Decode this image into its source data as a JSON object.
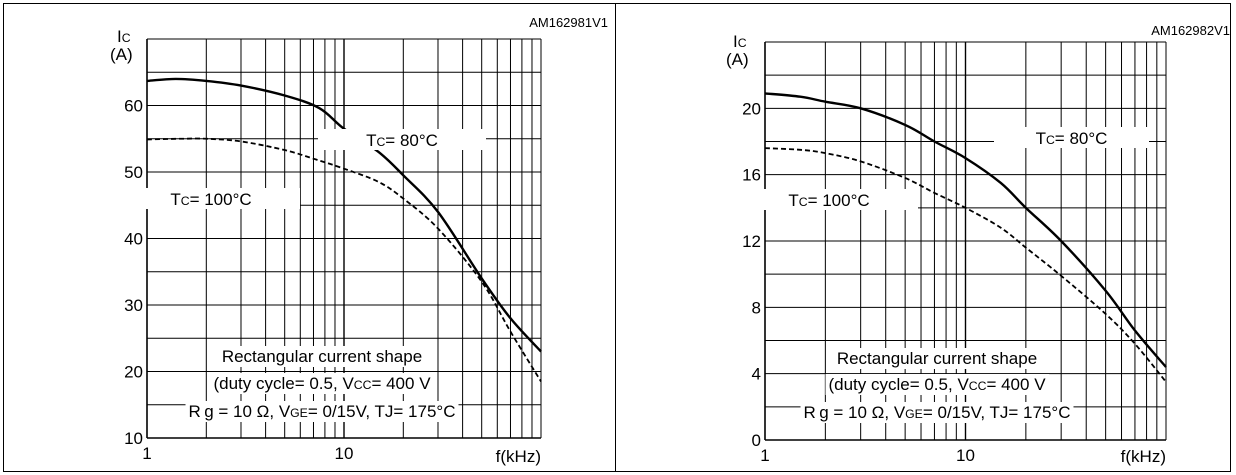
{
  "chart_data": [
    {
      "type": "line",
      "figure_id": "AM162981V1",
      "ylabel": "IC",
      "yunit": "(A)",
      "xlabel": "f(kHz)",
      "xscale": "log",
      "xlim": [
        1,
        100
      ],
      "ylim": [
        10,
        70
      ],
      "yticks": [
        10,
        20,
        30,
        40,
        50,
        60
      ],
      "xticks": [
        1,
        10
      ],
      "grid": true,
      "series": [
        {
          "name": "TC= 80°C",
          "style": "solid",
          "x": [
            1,
            1.4,
            2,
            3,
            5,
            7.5,
            10,
            15,
            20,
            30,
            50,
            70,
            100
          ],
          "y": [
            63.7,
            64,
            63.7,
            63,
            61.5,
            59.6,
            56.5,
            53,
            49.5,
            44,
            34,
            28,
            23
          ]
        },
        {
          "name": "TC= 100°C",
          "style": "dashed",
          "x": [
            1,
            1.5,
            2,
            3,
            5,
            7,
            10,
            15,
            20,
            30,
            50,
            70,
            100
          ],
          "y": [
            54.9,
            55,
            55,
            54.6,
            53.3,
            52,
            50.5,
            48.5,
            46,
            41.5,
            33.5,
            26,
            18.5
          ]
        }
      ],
      "series_labels": [
        "TC= 80°C",
        "TC= 100°C"
      ],
      "annotation": {
        "line1": "Rectangular current shape",
        "line2": "(duty cycle= 0.5, VCC= 400 V",
        "line3": "Rg = 10 Ω, VGE= 0/15V, TJ= 175°C"
      }
    },
    {
      "type": "line",
      "figure_id": "AM162982V1",
      "ylabel": "IC",
      "yunit": "(A)",
      "xlabel": "f(kHz)",
      "xscale": "log",
      "xlim": [
        1,
        100
      ],
      "ylim": [
        0,
        24
      ],
      "yticks": [
        0,
        4,
        8,
        12,
        16,
        20
      ],
      "xticks": [
        1,
        10
      ],
      "grid": true,
      "series": [
        {
          "name": "TC= 80°C",
          "style": "solid",
          "x": [
            1,
            1.5,
            2,
            3,
            5,
            7,
            10,
            15,
            20,
            30,
            50,
            70,
            100
          ],
          "y": [
            20.9,
            20.7,
            20.4,
            20,
            19,
            18,
            17,
            15.5,
            14,
            12,
            9,
            6.6,
            4.4
          ]
        },
        {
          "name": "TC= 100°C",
          "style": "dashed",
          "x": [
            1,
            1.5,
            2,
            3,
            5,
            7,
            10,
            15,
            20,
            30,
            50,
            70,
            100
          ],
          "y": [
            17.6,
            17.5,
            17.3,
            16.8,
            15.8,
            14.9,
            14,
            12.8,
            11.6,
            9.9,
            7.6,
            5.8,
            3.5
          ]
        }
      ],
      "series_labels": [
        "TC= 80°C",
        "TC= 100°C"
      ],
      "annotation": {
        "line1": "Rectangular current shape",
        "line2": "(duty cycle= 0.5, VCC= 400 V",
        "line3": "Rg = 10 Ω, VGE= 0/15V, TJ= 175°C"
      }
    }
  ]
}
